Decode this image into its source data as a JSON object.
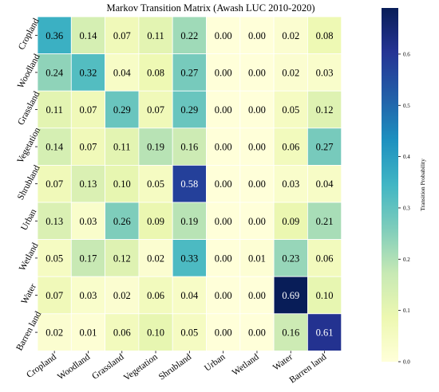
{
  "chart_data": {
    "type": "heatmap",
    "title": "Markov Transition Matrix (Awash LUC 2010-2020)",
    "xlabel": "",
    "ylabel": "",
    "row_labels": [
      "Cropland",
      "Woodland",
      "Grassland",
      "Vegetation",
      "Shrubland",
      "Urban",
      "Wetland",
      "Water",
      "Barren land"
    ],
    "col_labels": [
      "Cropland",
      "Woodland",
      "Grassland",
      "Vegetation",
      "Shrubland",
      "Urban",
      "Wetland",
      "Water",
      "Barren land"
    ],
    "values": [
      [
        0.36,
        0.14,
        0.07,
        0.11,
        0.22,
        0.0,
        0.0,
        0.02,
        0.08
      ],
      [
        0.24,
        0.32,
        0.04,
        0.08,
        0.27,
        0.0,
        0.0,
        0.02,
        0.03
      ],
      [
        0.11,
        0.07,
        0.29,
        0.07,
        0.29,
        0.0,
        0.0,
        0.05,
        0.12
      ],
      [
        0.14,
        0.07,
        0.11,
        0.19,
        0.16,
        0.0,
        0.0,
        0.06,
        0.27
      ],
      [
        0.07,
        0.13,
        0.1,
        0.05,
        0.58,
        0.0,
        0.0,
        0.03,
        0.04
      ],
      [
        0.13,
        0.03,
        0.26,
        0.09,
        0.19,
        0.0,
        0.0,
        0.09,
        0.21
      ],
      [
        0.05,
        0.17,
        0.12,
        0.02,
        0.33,
        0.0,
        0.01,
        0.23,
        0.06
      ],
      [
        0.07,
        0.03,
        0.02,
        0.06,
        0.04,
        0.0,
        0.0,
        0.69,
        0.1
      ],
      [
        0.02,
        0.01,
        0.06,
        0.1,
        0.05,
        0.0,
        0.0,
        0.16,
        0.61
      ]
    ],
    "colorbar": {
      "label": "Transition Probability",
      "min": 0.0,
      "max": 0.69,
      "ticks": [
        0.0,
        0.1,
        0.2,
        0.3,
        0.4,
        0.5,
        0.6
      ],
      "tick_labels": [
        "0.0",
        "0.1",
        "0.2",
        "0.3",
        "0.4",
        "0.5",
        "0.6"
      ],
      "colormap": "YlGnBu",
      "colors": [
        "#ffffd9",
        "#edf8b1",
        "#c7e9b4",
        "#7fcdbb",
        "#41b6c4",
        "#1d91c0",
        "#225ea8",
        "#253494",
        "#081d58"
      ]
    }
  }
}
